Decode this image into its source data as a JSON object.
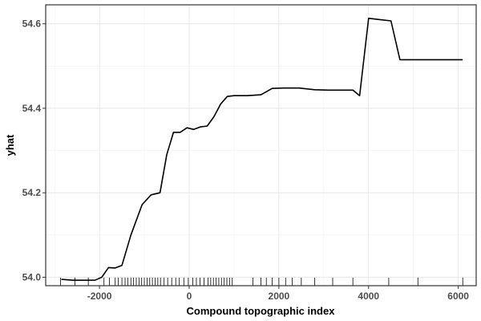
{
  "chart_data": {
    "type": "line",
    "title": "",
    "xlabel": "Compound topographic index",
    "ylabel": "yhat",
    "xlim": [
      -3200,
      6400
    ],
    "ylim": [
      53.98,
      54.645
    ],
    "x_ticks": [
      -2000,
      0,
      2000,
      4000,
      6000
    ],
    "x_tick_labels": [
      "-2000",
      "0",
      "2000",
      "4000",
      "6000"
    ],
    "y_ticks": [
      54.0,
      54.2,
      54.4,
      54.6
    ],
    "y_tick_labels": [
      "54.0",
      "54.2",
      "54.4",
      "54.6"
    ],
    "grid": true,
    "legend": "none",
    "line_color": "#000000",
    "series": [
      {
        "x": [
          -2850,
          -2600,
          -2400,
          -2100,
          -1950,
          -1800,
          -1650,
          -1500,
          -1300,
          -1050,
          -850,
          -650,
          -500,
          -350,
          -200,
          -50,
          100,
          250,
          400,
          550,
          700,
          850,
          1000,
          1300,
          1600,
          1850,
          2100,
          2450,
          2800,
          3100,
          3400,
          3650,
          3800,
          4000,
          4250,
          4500,
          4700,
          5000,
          5500,
          6100
        ],
        "y": [
          53.995,
          53.993,
          53.993,
          53.993,
          54.0,
          54.023,
          54.022,
          54.028,
          54.1,
          54.172,
          54.195,
          54.2,
          54.29,
          54.343,
          54.343,
          54.354,
          54.35,
          54.356,
          54.358,
          54.38,
          54.41,
          54.428,
          54.43,
          54.43,
          54.432,
          54.447,
          54.448,
          54.448,
          54.444,
          54.443,
          54.443,
          54.443,
          54.43,
          54.613,
          54.61,
          54.607,
          54.515,
          54.515,
          54.515,
          54.515
        ]
      }
    ],
    "rug_x": [
      -2870,
      -2550,
      -2250,
      -1900,
      -1780,
      -1650,
      -1580,
      -1500,
      -1430,
      -1370,
      -1300,
      -1240,
      -1180,
      -1120,
      -1060,
      -1000,
      -940,
      -880,
      -820,
      -760,
      -700,
      -640,
      -560,
      -480,
      -390,
      -300,
      -220,
      -120,
      -20,
      80,
      160,
      240,
      330,
      420,
      480,
      540,
      600,
      660,
      720,
      780,
      840,
      900,
      960,
      1420,
      1600,
      1720,
      1850,
      2000,
      2150,
      2300,
      2500,
      2800,
      3200,
      3650,
      4450,
      5100,
      6100
    ]
  }
}
